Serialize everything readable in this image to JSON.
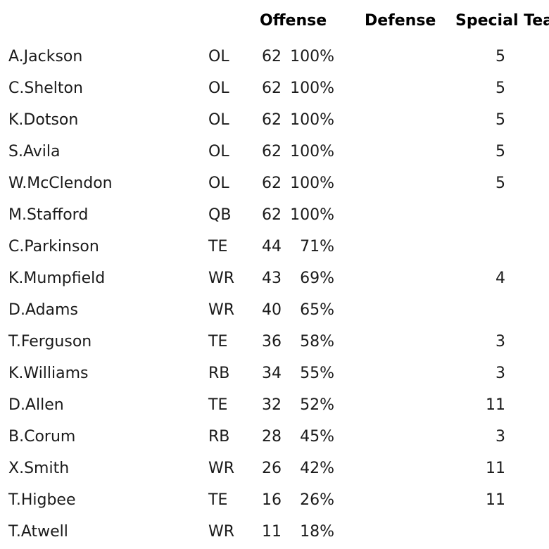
{
  "headers": {
    "offense": "Offense",
    "defense": "Defense",
    "special_teams": "Special Tea"
  },
  "rows": [
    {
      "name": "A.Jackson",
      "pos": "OL",
      "snaps": "62",
      "pct": "100%",
      "st": "5"
    },
    {
      "name": "C.Shelton",
      "pos": "OL",
      "snaps": "62",
      "pct": "100%",
      "st": "5"
    },
    {
      "name": "K.Dotson",
      "pos": "OL",
      "snaps": "62",
      "pct": "100%",
      "st": "5"
    },
    {
      "name": "S.Avila",
      "pos": "OL",
      "snaps": "62",
      "pct": "100%",
      "st": "5"
    },
    {
      "name": "W.McClendon",
      "pos": "OL",
      "snaps": "62",
      "pct": "100%",
      "st": "5"
    },
    {
      "name": "M.Stafford",
      "pos": "QB",
      "snaps": "62",
      "pct": "100%",
      "st": ""
    },
    {
      "name": "C.Parkinson",
      "pos": "TE",
      "snaps": "44",
      "pct": "71%",
      "st": ""
    },
    {
      "name": "K.Mumpfield",
      "pos": "WR",
      "snaps": "43",
      "pct": "69%",
      "st": "4"
    },
    {
      "name": "D.Adams",
      "pos": "WR",
      "snaps": "40",
      "pct": "65%",
      "st": ""
    },
    {
      "name": "T.Ferguson",
      "pos": "TE",
      "snaps": "36",
      "pct": "58%",
      "st": "3"
    },
    {
      "name": "K.Williams",
      "pos": "RB",
      "snaps": "34",
      "pct": "55%",
      "st": "3"
    },
    {
      "name": "D.Allen",
      "pos": "TE",
      "snaps": "32",
      "pct": "52%",
      "st": "11"
    },
    {
      "name": "B.Corum",
      "pos": "RB",
      "snaps": "28",
      "pct": "45%",
      "st": "3"
    },
    {
      "name": "X.Smith",
      "pos": "WR",
      "snaps": "26",
      "pct": "42%",
      "st": "11"
    },
    {
      "name": "T.Higbee",
      "pos": "TE",
      "snaps": "16",
      "pct": "26%",
      "st": "11"
    },
    {
      "name": "T.Atwell",
      "pos": "WR",
      "snaps": "11",
      "pct": "18%",
      "st": ""
    }
  ]
}
